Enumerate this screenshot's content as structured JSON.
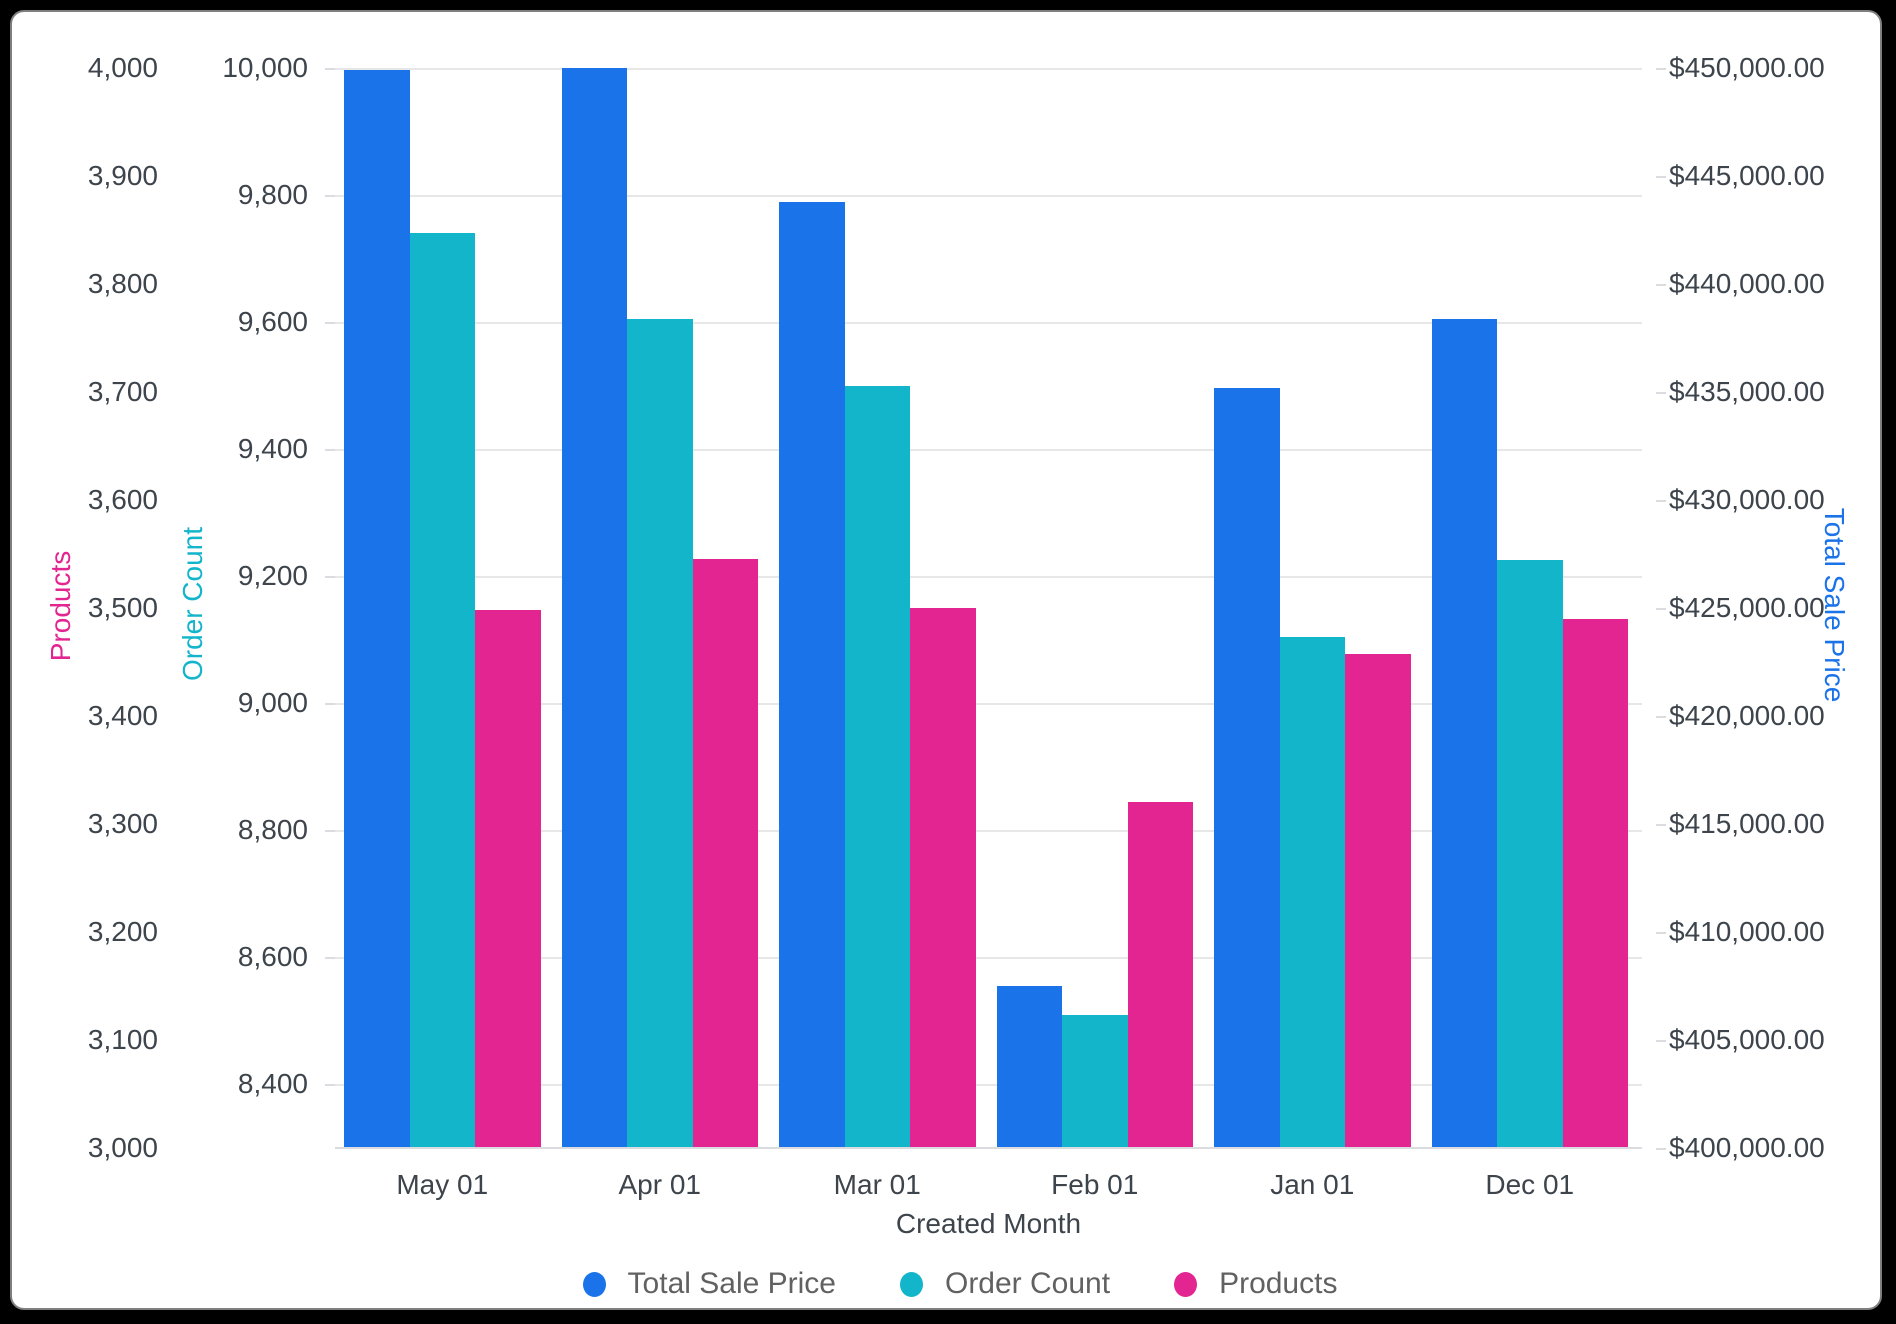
{
  "chart_data": {
    "type": "bar",
    "categories": [
      "May 01",
      "Apr 01",
      "Mar 01",
      "Feb 01",
      "Jan 01",
      "Dec 01"
    ],
    "series": [
      {
        "name": "Total Sale Price",
        "axis": "price",
        "color": "#1a73e8",
        "values": [
          449900,
          450000,
          443800,
          407500,
          435200,
          438400
        ]
      },
      {
        "name": "Order Count",
        "axis": "order",
        "color": "#13b5cb",
        "values": [
          9740,
          9605,
          9500,
          8510,
          9105,
          9225
        ]
      },
      {
        "name": "Products",
        "axis": "products",
        "color": "#e32592",
        "values": [
          3498,
          3545,
          3500,
          3320,
          3457,
          3490
        ]
      }
    ],
    "axes": {
      "products": {
        "title": "Products",
        "side": "left-outer",
        "min": 3000,
        "max": 4000,
        "title_color": "#e32592",
        "ticks": [
          "4,000",
          "3,900",
          "3,800",
          "3,700",
          "3,600",
          "3,500",
          "3,400",
          "3,300",
          "3,200",
          "3,100",
          "3,000"
        ]
      },
      "order": {
        "title": "Order Count",
        "side": "left-inner",
        "min": 8300,
        "max": 10000,
        "title_color": "#13b5cb",
        "ticks": [
          "10,000",
          "9,800",
          "9,600",
          "9,400",
          "9,200",
          "9,000",
          "8,800",
          "8,600",
          "8,400"
        ]
      },
      "price": {
        "title": "Total Sale Price",
        "side": "right",
        "min": 400000,
        "max": 450000,
        "title_color": "#1a73e8",
        "ticks": [
          "$450,000.00",
          "$445,000.00",
          "$440,000.00",
          "$435,000.00",
          "$430,000.00",
          "$425,000.00",
          "$420,000.00",
          "$415,000.00",
          "$410,000.00",
          "$405,000.00",
          "$400,000.00"
        ]
      }
    },
    "xlabel": "Created Month",
    "legend": [
      "Total Sale Price",
      "Order Count",
      "Products"
    ],
    "legend_position": "bottom-center",
    "grid": "horizontal gridlines at Order Count ticks",
    "colors": {
      "grid": "#e7e7e7",
      "axis_line": "#dadce0",
      "tick_text": "#3d444b",
      "legend_text": "#616161"
    }
  }
}
